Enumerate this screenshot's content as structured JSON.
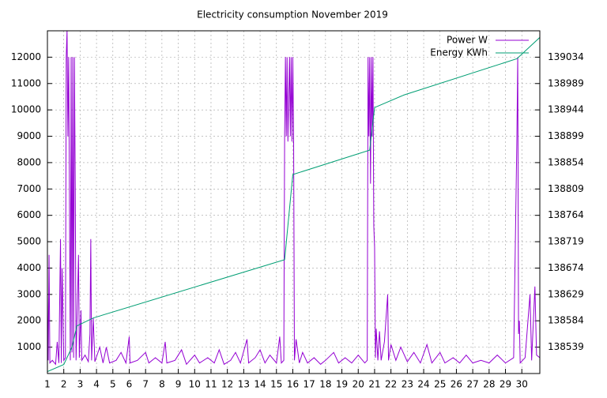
{
  "chart_data": {
    "type": "line",
    "title": "Electricity consumption November 2019",
    "xlim": [
      1,
      31.1
    ],
    "xticks": [
      1,
      2,
      3,
      4,
      5,
      6,
      7,
      8,
      9,
      10,
      11,
      12,
      13,
      14,
      15,
      16,
      17,
      18,
      19,
      20,
      21,
      22,
      23,
      24,
      25,
      26,
      27,
      28,
      29,
      30
    ],
    "ylim": [
      0,
      13000
    ],
    "yticks": [
      1000,
      2000,
      3000,
      4000,
      5000,
      6000,
      7000,
      8000,
      9000,
      10000,
      11000,
      12000
    ],
    "y2lim": [
      138494,
      139079
    ],
    "y2ticks": [
      138539,
      138584,
      138629,
      138674,
      138719,
      138764,
      138809,
      138854,
      138899,
      138944,
      138989,
      139034
    ],
    "grid": true,
    "legend": "top-right",
    "series": [
      {
        "name": "Power W",
        "color": "#9400d3",
        "x": [
          1.0,
          1.05,
          1.1,
          1.15,
          1.3,
          1.5,
          1.6,
          1.7,
          1.8,
          1.85,
          1.9,
          2.0,
          2.1,
          2.15,
          2.2,
          2.25,
          2.3,
          2.4,
          2.45,
          2.5,
          2.55,
          2.6,
          2.65,
          2.7,
          2.75,
          2.8,
          2.9,
          2.95,
          3.05,
          3.1,
          3.3,
          3.5,
          3.6,
          3.65,
          3.7,
          3.8,
          3.9,
          4.2,
          4.4,
          4.6,
          4.8,
          5.2,
          5.5,
          5.8,
          6.0,
          6.05,
          6.5,
          7.0,
          7.2,
          7.6,
          8.0,
          8.2,
          8.3,
          8.8,
          9.2,
          9.5,
          10.0,
          10.3,
          10.8,
          11.2,
          11.5,
          11.8,
          12.2,
          12.5,
          12.8,
          13.2,
          13.3,
          13.7,
          14.0,
          14.3,
          14.6,
          15.0,
          15.2,
          15.3,
          15.45,
          15.5,
          15.55,
          15.6,
          15.65,
          15.7,
          15.8,
          15.85,
          15.9,
          15.95,
          16.0,
          16.05,
          16.1,
          16.2,
          16.4,
          16.6,
          16.9,
          17.3,
          17.7,
          18.0,
          18.5,
          18.8,
          19.2,
          19.6,
          20.0,
          20.4,
          20.55,
          20.6,
          20.65,
          20.7,
          20.75,
          20.8,
          20.85,
          20.9,
          20.95,
          21.0,
          21.05,
          21.1,
          21.2,
          21.3,
          21.4,
          21.6,
          21.8,
          21.85,
          22.0,
          22.3,
          22.6,
          23.0,
          23.4,
          23.8,
          24.2,
          24.5,
          25.0,
          25.3,
          25.8,
          26.2,
          26.6,
          27.0,
          27.5,
          28.0,
          28.5,
          29.0,
          29.5,
          29.7,
          29.75,
          29.8,
          29.85,
          29.9,
          30.2,
          30.5,
          30.6,
          30.8,
          30.9,
          31.1
        ],
        "values": [
          3000,
          500,
          4500,
          400,
          500,
          350,
          1200,
          400,
          5100,
          400,
          4000,
          500,
          600,
          12000,
          13000,
          9000,
          12000,
          500,
          12000,
          800,
          12000,
          600,
          12000,
          7200,
          500,
          1800,
          4500,
          600,
          2400,
          500,
          700,
          450,
          1500,
          5100,
          500,
          2100,
          450,
          1000,
          400,
          1000,
          400,
          500,
          800,
          400,
          1400,
          400,
          500,
          800,
          400,
          600,
          400,
          1200,
          400,
          500,
          900,
          350,
          700,
          400,
          600,
          400,
          900,
          350,
          500,
          800,
          400,
          1300,
          400,
          600,
          900,
          400,
          700,
          400,
          1400,
          400,
          500,
          9000,
          12000,
          9000,
          12000,
          8800,
          12000,
          9000,
          12000,
          8800,
          12000,
          8900,
          500,
          1300,
          400,
          800,
          400,
          600,
          350,
          500,
          800,
          400,
          600,
          400,
          700,
          400,
          500,
          12000,
          9000,
          12000,
          7200,
          12000,
          9000,
          12000,
          5600,
          4800,
          600,
          1700,
          500,
          1600,
          500,
          1200,
          3000,
          500,
          1100,
          500,
          1000,
          450,
          800,
          400,
          1100,
          400,
          800,
          400,
          600,
          400,
          700,
          400,
          500,
          400,
          700,
          400,
          600,
          9000,
          12000,
          1500,
          2000,
          400,
          600,
          3000,
          500,
          3300,
          700,
          600
        ]
      },
      {
        "name": "Energy KWh",
        "color": "#009e73",
        "axis": "y2",
        "x": [
          1.0,
          2.0,
          2.5,
          2.8,
          3.8,
          15.5,
          16.0,
          20.7,
          21.0,
          22.8,
          29.7,
          31.1
        ],
        "values": [
          138497.3,
          138509.4,
          138539,
          138575.3,
          138588.8,
          138688.3,
          138833.6,
          138875.3,
          138948,
          138969.5,
          139031.4,
          139067.7
        ]
      }
    ]
  }
}
